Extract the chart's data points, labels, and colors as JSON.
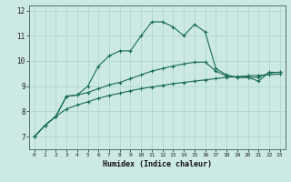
{
  "xlabel": "Humidex (Indice chaleur)",
  "background_color": "#cce9e4",
  "grid_color": "#b0d8d0",
  "line_color": "#1a6b58",
  "xlim": [
    -0.5,
    23.5
  ],
  "ylim": [
    6.5,
    12.2
  ],
  "xticks": [
    0,
    1,
    2,
    3,
    4,
    5,
    6,
    7,
    8,
    9,
    10,
    11,
    12,
    13,
    14,
    15,
    16,
    17,
    18,
    19,
    20,
    21,
    22,
    23
  ],
  "yticks": [
    7,
    8,
    9,
    10,
    11,
    12
  ],
  "line_top_y": [
    7.0,
    7.45,
    7.8,
    8.6,
    8.65,
    9.0,
    9.8,
    10.2,
    10.4,
    10.4,
    11.0,
    11.55,
    11.55,
    11.35,
    11.0,
    11.45,
    11.15,
    9.7,
    9.45,
    9.35,
    9.35,
    9.2,
    9.55,
    9.55
  ],
  "line_mid_y": [
    7.0,
    7.45,
    7.8,
    8.6,
    8.65,
    8.75,
    8.9,
    9.05,
    9.15,
    9.3,
    9.45,
    9.6,
    9.7,
    9.8,
    9.88,
    9.95,
    9.95,
    9.6,
    9.4,
    9.35,
    9.35,
    9.35,
    9.52,
    9.55
  ],
  "line_bot_y": [
    7.0,
    7.45,
    7.8,
    8.1,
    8.25,
    8.38,
    8.52,
    8.63,
    8.72,
    8.82,
    8.9,
    8.97,
    9.03,
    9.1,
    9.15,
    9.2,
    9.25,
    9.3,
    9.35,
    9.38,
    9.41,
    9.43,
    9.45,
    9.48
  ]
}
